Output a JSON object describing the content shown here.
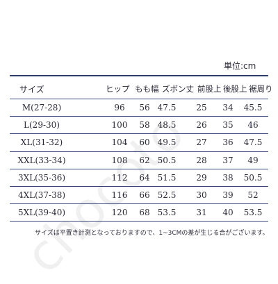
{
  "unit_label": "単位:cm",
  "headers": {
    "size": "サイズ",
    "hip": "ヒップ",
    "thigh": "もも幅",
    "length": "ズボン丈",
    "front_rise": "前股上",
    "back_rise": "後股上",
    "hem": "裾周り"
  },
  "rows": [
    {
      "size": "M(27-28)",
      "hip": "96",
      "thigh": "56",
      "length": "47.5",
      "front_rise": "25",
      "back_rise": "34",
      "hem": "45.5"
    },
    {
      "size": "L(29-30)",
      "hip": "100",
      "thigh": "58",
      "length": "48.5",
      "front_rise": "26",
      "back_rise": "35",
      "hem": "46"
    },
    {
      "size": "XL(31-32)",
      "hip": "104",
      "thigh": "60",
      "length": "49.5",
      "front_rise": "27",
      "back_rise": "36",
      "hem": "47.5"
    },
    {
      "size": "XXL(33-34)",
      "hip": "108",
      "thigh": "62",
      "length": "50.5",
      "front_rise": "28",
      "back_rise": "37",
      "hem": "49"
    },
    {
      "size": "3XL(35-36)",
      "hip": "112",
      "thigh": "64",
      "length": "51.5",
      "front_rise": "29",
      "back_rise": "38",
      "hem": "50.5"
    },
    {
      "size": "4XL(37-38)",
      "hip": "116",
      "thigh": "66",
      "length": "52.5",
      "front_rise": "30",
      "back_rise": "39",
      "hem": "52"
    },
    {
      "size": "5XL(39-40)",
      "hip": "120",
      "thigh": "68",
      "length": "53.5",
      "front_rise": "31",
      "back_rise": "40",
      "hem": "53.5"
    }
  ],
  "note": "サイズは平置き計測となっておりますので、1~3CMの差が生じる合がございます。",
  "watermark": "chocoto",
  "colors": {
    "rule": "#2d3e6e",
    "text": "#2b2b3a"
  }
}
